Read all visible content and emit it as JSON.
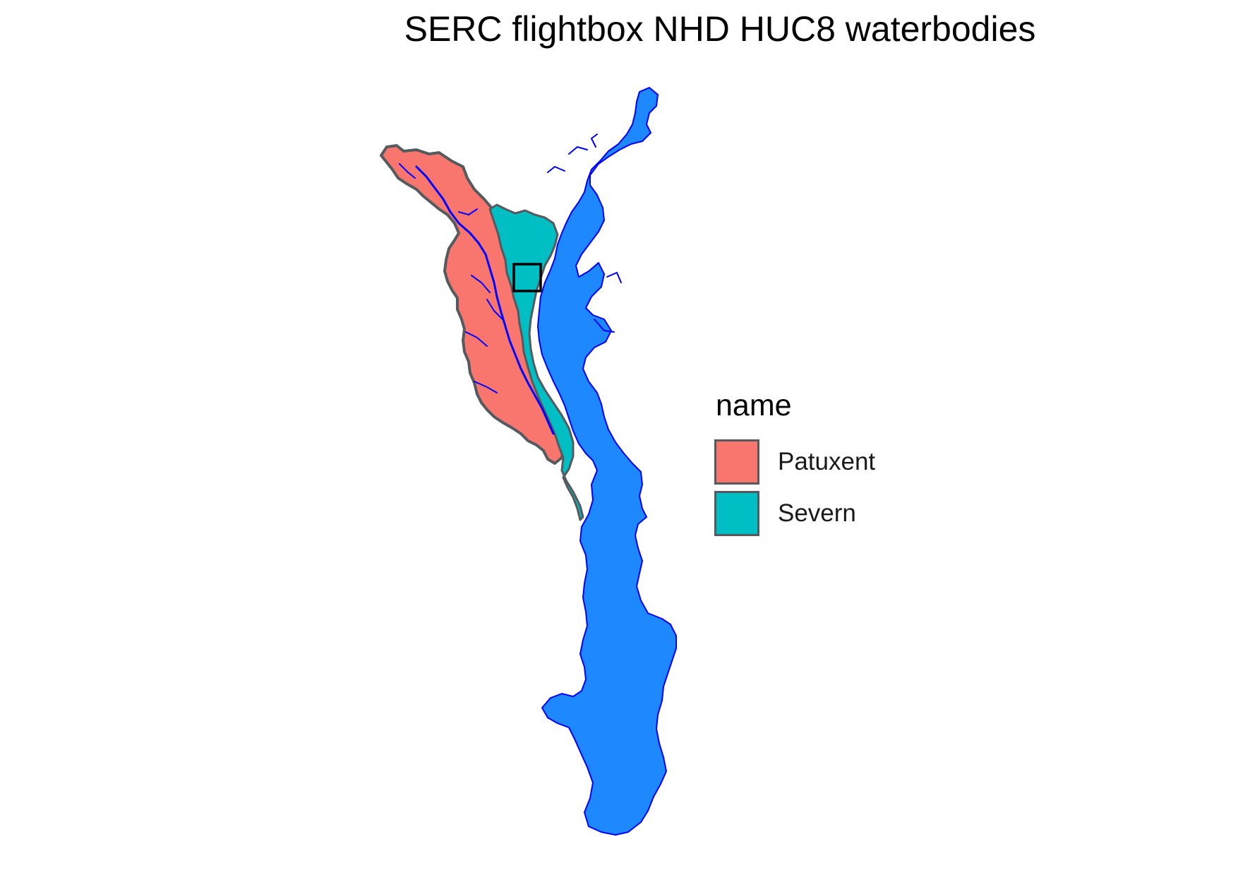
{
  "map": {
    "title": "SERC flightbox NHD HUC8 waterbodies"
  },
  "legend": {
    "title": "name",
    "items": [
      {
        "label": "Patuxent",
        "color": "#f8766d"
      },
      {
        "label": "Severn",
        "color": "#00bfc4"
      }
    ]
  },
  "colors": {
    "waterbody_fill": "#1e88ff",
    "waterbody_stroke": "#0000ff",
    "basin_outline": "#555a5e",
    "flightbox_outline": "#000000"
  },
  "layers": [
    {
      "name": "Patuxent",
      "kind": "HUC8 basin"
    },
    {
      "name": "Severn",
      "kind": "HUC8 basin"
    },
    {
      "name": "waterbodies",
      "kind": "NHD waterbody polygons"
    },
    {
      "name": "flightbox",
      "kind": "rectangle outline"
    }
  ]
}
